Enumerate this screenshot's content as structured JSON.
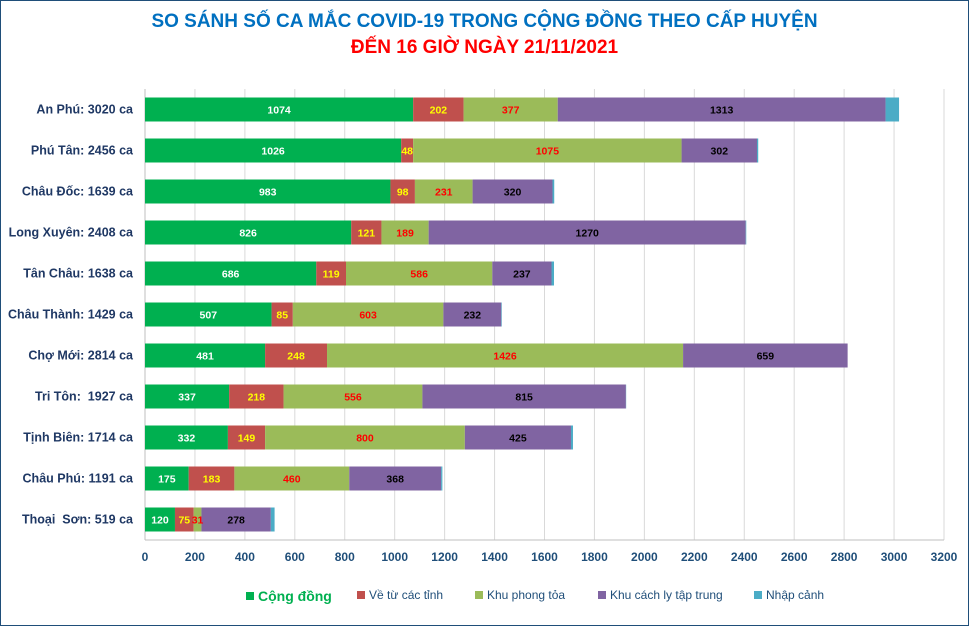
{
  "chart_data": {
    "type": "bar",
    "orientation": "horizontal",
    "stacked": true,
    "title": "SO SÁNH SỐ CA MẮC COVID-19 TRONG CỘNG ĐỒNG THEO CẤP HUYỆN",
    "subtitle": "ĐẾN 16 GIỜ NGÀY 21/11/2021",
    "categories": [
      "An Phú: 3020 ca",
      "Phú Tân: 2456 ca",
      "Châu Đốc: 1639 ca",
      "Long Xuyên: 2408 ca",
      "Tân Châu: 1638 ca",
      "Châu Thành: 1429 ca",
      "Chợ Mới: 2814 ca",
      "Tri Tôn:  1927 ca",
      "Tịnh Biên: 1714 ca",
      "Châu Phú: 1191 ca",
      "Thoại  Sơn: 519 ca"
    ],
    "series": [
      {
        "name": "Cộng đồng",
        "color": "#00b050",
        "label_color": "#ffffff",
        "values": [
          1074,
          1026,
          983,
          826,
          686,
          507,
          481,
          337,
          332,
          175,
          120
        ]
      },
      {
        "name": "Về từ các tỉnh",
        "color": "#c0504d",
        "label_color": "#ffff00",
        "values": [
          202,
          48,
          98,
          121,
          119,
          85,
          248,
          218,
          149,
          183,
          75
        ]
      },
      {
        "name": "Khu phong tỏa",
        "color": "#9bbb59",
        "label_color": "#ff0000",
        "values": [
          377,
          1075,
          231,
          189,
          586,
          603,
          1426,
          556,
          800,
          460,
          31
        ]
      },
      {
        "name": "Khu cách ly tập trung",
        "color": "#8064a2",
        "label_color": "#000000",
        "values": [
          1313,
          302,
          320,
          1270,
          237,
          232,
          659,
          815,
          425,
          368,
          278
        ]
      },
      {
        "name": "Nhập cảnh",
        "color": "#4bacc6",
        "label_color": "#000000",
        "values": [
          54,
          5,
          7,
          2,
          10,
          2,
          0,
          1,
          8,
          5,
          15
        ]
      }
    ],
    "xlim": [
      0,
      3200
    ],
    "xticks": [
      0,
      200,
      400,
      600,
      800,
      1000,
      1200,
      1400,
      1600,
      1800,
      2000,
      2200,
      2400,
      2600,
      2800,
      3000,
      3200
    ],
    "grid": true,
    "legend_position": "bottom"
  }
}
